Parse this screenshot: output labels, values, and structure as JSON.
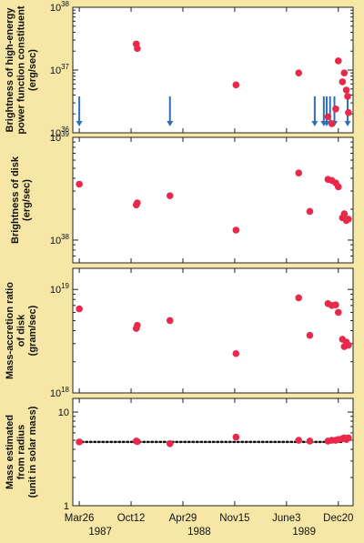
{
  "chart_data": [
    {
      "type": "scatter",
      "ylabel": [
        "Brightness of high-energy",
        "power function constituent",
        "(erg/sec)"
      ],
      "yscale": "log",
      "ylim": [
        1e+36,
        1e+38
      ],
      "ytick_labels": [
        {
          "base": "10",
          "exp": "36",
          "value": 1e+36
        },
        {
          "base": "10",
          "exp": "37",
          "value": 1e+37
        },
        {
          "base": "10",
          "exp": "38",
          "value": 1e+38
        }
      ],
      "points": [
        {
          "x": "1987-11-01",
          "y": 2.6e+37
        },
        {
          "x": "1987-11-05",
          "y": 2.2e+37
        },
        {
          "x": "1988-11-20",
          "y": 5.8e+36
        },
        {
          "x": "1989-07-20",
          "y": 9e+36
        },
        {
          "x": "1989-11-10",
          "y": 1.8e+36
        },
        {
          "x": "1989-11-25",
          "y": 1.4e+36
        },
        {
          "x": "1989-12-10",
          "y": 2.4e+36
        },
        {
          "x": "1989-12-20",
          "y": 1.4e+37
        },
        {
          "x": "1990-01-05",
          "y": 6.5e+36
        },
        {
          "x": "1990-01-12",
          "y": 9e+36
        },
        {
          "x": "1990-01-20",
          "y": 4.8e+36
        },
        {
          "x": "1990-01-25",
          "y": 3.8e+36
        },
        {
          "x": "1990-01-28",
          "y": 2.1e+36
        }
      ],
      "upper_limit_arrows": [
        "1987-03-26",
        "1988-03-10",
        "1989-09-20",
        "1989-10-25",
        "1989-11-05",
        "1989-11-18",
        "1989-12-05",
        "1990-01-25"
      ],
      "colors": {
        "point": "#e8294a",
        "arrow": "#2f6fb3"
      }
    },
    {
      "type": "scatter",
      "ylabel": [
        "Brightness of disk",
        "(erg/sec)"
      ],
      "yscale": "log",
      "ylim": [
        6e+37,
        1e+39
      ],
      "ytick_labels": [
        {
          "base": "10",
          "exp": "38",
          "value": 1e+38
        },
        {
          "base": "10",
          "exp": "39",
          "value": 1e+39
        }
      ],
      "points": [
        {
          "x": "1987-03-26",
          "y": 3.5e+38
        },
        {
          "x": "1987-11-01",
          "y": 2.2e+38
        },
        {
          "x": "1987-11-05",
          "y": 2.3e+38
        },
        {
          "x": "1988-03-10",
          "y": 2.7e+38
        },
        {
          "x": "1988-11-20",
          "y": 1.25e+38
        },
        {
          "x": "1989-07-20",
          "y": 4.5e+38
        },
        {
          "x": "1989-09-01",
          "y": 1.9e+38
        },
        {
          "x": "1989-11-10",
          "y": 3.9e+38
        },
        {
          "x": "1989-11-25",
          "y": 3.8e+38
        },
        {
          "x": "1989-12-10",
          "y": 3.6e+38
        },
        {
          "x": "1989-12-20",
          "y": 3.3e+38
        },
        {
          "x": "1990-01-05",
          "y": 1.65e+38
        },
        {
          "x": "1990-01-12",
          "y": 1.8e+38
        },
        {
          "x": "1990-01-20",
          "y": 1.55e+38
        },
        {
          "x": "1990-01-28",
          "y": 1.6e+38
        }
      ],
      "colors": {
        "point": "#e8294a"
      }
    },
    {
      "type": "scatter",
      "ylabel": [
        "Mass-accretion ratio",
        "of disk",
        "(gram/sec)"
      ],
      "yscale": "log",
      "ylim": [
        1e+18,
        1.6e+19
      ],
      "ytick_labels": [
        {
          "base": "10",
          "exp": "18",
          "value": 1e+18
        },
        {
          "base": "10",
          "exp": "19",
          "value": 1e+19
        }
      ],
      "points": [
        {
          "x": "1987-03-26",
          "y": 6.5e+18
        },
        {
          "x": "1987-11-01",
          "y": 4.2e+18
        },
        {
          "x": "1987-11-05",
          "y": 4.5e+18
        },
        {
          "x": "1988-03-10",
          "y": 5e+18
        },
        {
          "x": "1988-11-20",
          "y": 2.4e+18
        },
        {
          "x": "1989-07-20",
          "y": 8.3e+18
        },
        {
          "x": "1989-09-01",
          "y": 3.6e+18
        },
        {
          "x": "1989-11-10",
          "y": 7.3e+18
        },
        {
          "x": "1989-11-25",
          "y": 7e+18
        },
        {
          "x": "1989-12-10",
          "y": 7.1e+18
        },
        {
          "x": "1989-12-20",
          "y": 6e+18
        },
        {
          "x": "1990-01-05",
          "y": 3.3e+18
        },
        {
          "x": "1990-01-12",
          "y": 2.8e+18
        },
        {
          "x": "1990-01-20",
          "y": 3.1e+18
        },
        {
          "x": "1990-01-28",
          "y": 2.9e+18
        }
      ],
      "colors": {
        "point": "#e8294a"
      }
    },
    {
      "type": "scatter",
      "ylabel": [
        "Mass estimated",
        "from radius",
        "(unit in solar mass)"
      ],
      "yscale": "log",
      "ylim": [
        1,
        14
      ],
      "ytick_labels": [
        {
          "base": "1",
          "exp": "",
          "value": 1
        },
        {
          "base": "10",
          "exp": "",
          "value": 10
        }
      ],
      "reference_line": 4.8,
      "points": [
        {
          "x": "1987-03-26",
          "y": 4.8
        },
        {
          "x": "1987-11-01",
          "y": 4.9
        },
        {
          "x": "1987-11-05",
          "y": 4.85
        },
        {
          "x": "1988-03-10",
          "y": 4.6
        },
        {
          "x": "1988-11-20",
          "y": 5.4
        },
        {
          "x": "1989-07-20",
          "y": 5.0
        },
        {
          "x": "1989-09-01",
          "y": 4.9
        },
        {
          "x": "1989-11-10",
          "y": 4.9
        },
        {
          "x": "1989-11-25",
          "y": 5.0
        },
        {
          "x": "1989-12-10",
          "y": 5.0
        },
        {
          "x": "1989-12-20",
          "y": 5.1
        },
        {
          "x": "1990-01-05",
          "y": 5.2
        },
        {
          "x": "1990-01-12",
          "y": 5.3
        },
        {
          "x": "1990-01-20",
          "y": 5.1
        },
        {
          "x": "1990-01-28",
          "y": 5.3
        }
      ],
      "colors": {
        "point": "#e8294a",
        "line": "#111111"
      }
    }
  ],
  "x_axis": {
    "xlim": [
      "1987-03-01",
      "1990-02-15"
    ],
    "ticks": [
      {
        "x": "1987-03-26",
        "label": "Mar26"
      },
      {
        "x": "1987-10-12",
        "label": "Oct12"
      },
      {
        "x": "1988-04-29",
        "label": "Apr29"
      },
      {
        "x": "1988-11-15",
        "label": "Nov15"
      },
      {
        "x": "1989-06-03",
        "label": "June3"
      },
      {
        "x": "1989-12-20",
        "label": "Dec20"
      }
    ],
    "year_labels": [
      {
        "x": "1987-06-15",
        "label": "1987"
      },
      {
        "x": "1988-07-01",
        "label": "1988"
      },
      {
        "x": "1989-08-10",
        "label": "1989"
      }
    ]
  },
  "colors": {
    "background": "#f7e7a6",
    "panel": "#ffffff",
    "point": "#e8294a",
    "arrow": "#2f6fb3"
  }
}
